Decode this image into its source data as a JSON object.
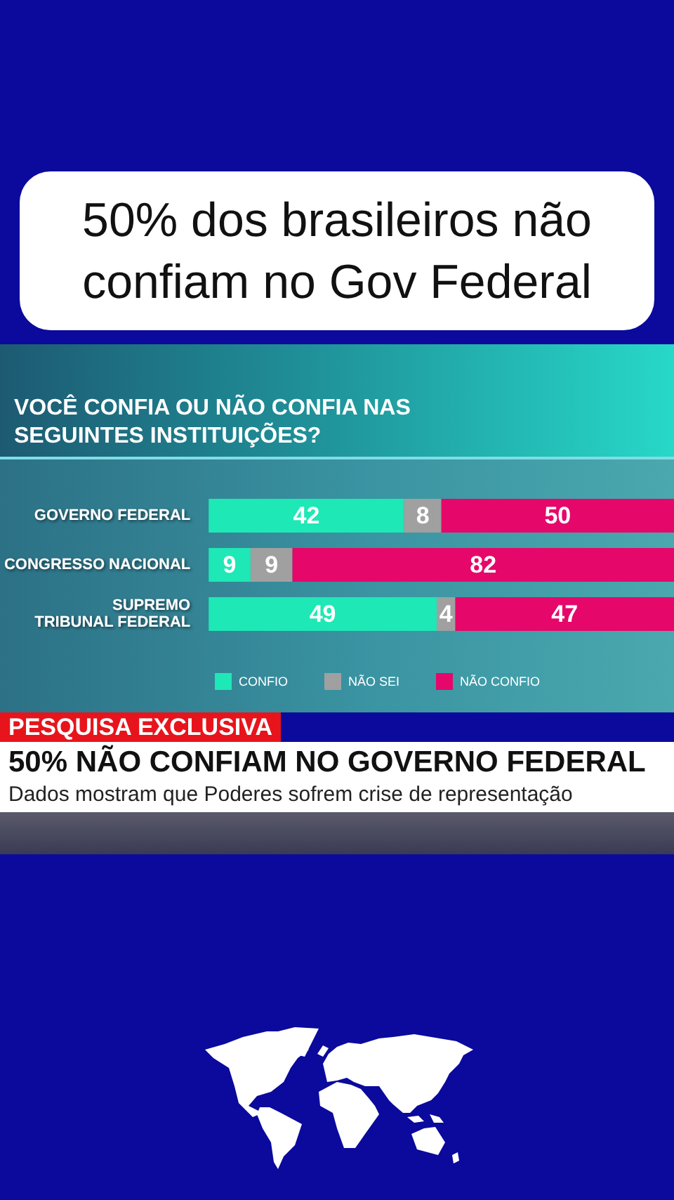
{
  "chart_data": {
    "type": "bar",
    "title": "50% dos brasileiros não confiam no Gov Federal",
    "subtitle": "VOCÊ CONFIA OU NÃO CONFIA NAS SEGUINTES INSTITUIÇÕES?",
    "annotations": [
      "PESQUISA EXCLUSIVA",
      "50% NÃO CONFIAM NO GOVERNO FEDERAL",
      "Dados mostram que Poderes sofrem crise de representação"
    ],
    "categories": [
      "GOVERNO FEDERAL",
      "CONGRESSO NACIONAL",
      "SUPREMO TRIBUNAL FEDERAL"
    ],
    "series": [
      {
        "name": "CONFIO",
        "color": "#1ee8b5",
        "values": [
          42,
          9,
          49
        ]
      },
      {
        "name": "NÃO SEI",
        "color": "#a0a0a0",
        "values": [
          8,
          9,
          4
        ]
      },
      {
        "name": "NÃO CONFIO",
        "color": "#e6076a",
        "values": [
          50,
          82,
          47
        ]
      }
    ],
    "orientation": "horizontal",
    "stacked": true,
    "xlim": [
      0,
      100
    ],
    "tick_labels": "y",
    "data_labels": true,
    "legend": "bottom"
  }
}
